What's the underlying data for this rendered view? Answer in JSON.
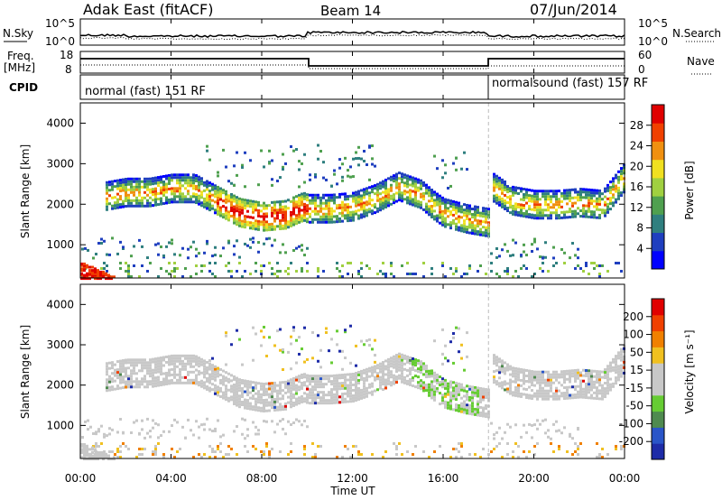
{
  "header": {
    "station": "Adak East (fitACF)",
    "beam": "Beam 14",
    "date": "07/Jun/2014"
  },
  "noise_panel": {
    "left_label": "N.Sky",
    "right_label": "N.Search",
    "left_ticks": [
      "10^5",
      "10^0"
    ],
    "right_ticks": [
      "10^5",
      "10^0"
    ]
  },
  "freq_panel": {
    "left_label_1": "Freq.",
    "left_label_2": "[MHz]",
    "right_label": "Nave",
    "left_ticks": [
      "18",
      "8"
    ],
    "right_ticks": [
      "60",
      "0"
    ]
  },
  "cpid_panel": {
    "label": "CPID",
    "modes": [
      {
        "name": "normal (fast)  151 RF",
        "start_hour": 0
      },
      {
        "name": "normalsound (fast)  157 RF",
        "start_hour": 18
      }
    ]
  },
  "xaxis": {
    "label": "Time UT",
    "ticks": [
      "00:00",
      "04:00",
      "08:00",
      "12:00",
      "16:00",
      "20:00",
      "00:00"
    ]
  },
  "power_panel": {
    "ylabel": "Slant Range [km]",
    "yticks": [
      "4000",
      "3000",
      "2000",
      "1000"
    ],
    "colorbar_label": "Power [dB]",
    "colorbar_ticks": [
      "28",
      "24",
      "20",
      "16",
      "12",
      "8",
      "4"
    ],
    "colors": [
      "#0000ff",
      "#1f3fbf",
      "#2f7f7f",
      "#4fa04f",
      "#a0d040",
      "#f0e020",
      "#f09010",
      "#f04000",
      "#e00000"
    ]
  },
  "velocity_panel": {
    "ylabel": "Slant Range [km]",
    "yticks": [
      "4000",
      "3000",
      "2000",
      "1000"
    ],
    "colorbar_label": "Velocity [m s⁻¹]",
    "colorbar_ticks": [
      "200",
      "100",
      "50",
      "15",
      "-15",
      "-50",
      "-100",
      "-200"
    ],
    "colors": [
      "#1e2ca8",
      "#2a55c8",
      "#4f8a4f",
      "#66cc33",
      "#c8c8c8",
      "#c8c8c8",
      "#f0c020",
      "#f08000",
      "#f04000",
      "#e00000"
    ]
  },
  "chart_data": {
    "type": "heatmap",
    "x_range_hours": [
      0,
      24
    ],
    "y_range_km": [
      180,
      4500
    ],
    "echo_bands": [
      {
        "t": [
          1.0,
          2.0,
          3.0,
          4.0,
          5.0,
          6.0,
          7.0,
          8.0,
          9.0,
          9.8,
          10.0,
          11.0,
          12.0,
          13.0,
          14.0,
          15.0,
          15.5,
          16.0,
          17.0,
          18.0
        ],
        "r": [
          2200,
          2300,
          2300,
          2400,
          2400,
          2100,
          1800,
          1700,
          1750,
          1950,
          1900,
          1900,
          1950,
          2150,
          2450,
          2250,
          2000,
          1800,
          1650,
          1550
        ]
      },
      {
        "t": [
          18.1,
          19.0,
          20.0,
          21.0,
          22.0,
          23.0,
          24.0
        ],
        "r": [
          2450,
          2100,
          2000,
          2000,
          2050,
          2000,
          2700
        ]
      }
    ],
    "near_range_echo": {
      "t": [
        0.0,
        1.5
      ],
      "r": [
        200,
        600
      ],
      "peak_power_db": 28
    }
  }
}
